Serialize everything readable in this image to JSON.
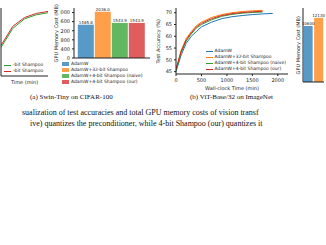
{
  "chart_data": [
    {
      "type": "line",
      "xlabel": "Time (min)",
      "tick_labels": false,
      "legend": "lower left",
      "x": [
        0,
        100,
        200,
        300,
        400
      ],
      "xlim": [
        0,
        400
      ],
      "ylim": [
        0,
        100
      ],
      "series": [
        {
          "name": "-bit Shampoo",
          "color": "#2ca02c",
          "values": [
            42,
            70,
            84,
            90,
            93
          ]
        },
        {
          "name": "-bit Shampoo",
          "color": "#d62728",
          "values": [
            45,
            73,
            86,
            92,
            95
          ]
        }
      ]
    },
    {
      "type": "bar",
      "ylabel": "GPU Memory Cost (MB)",
      "tick_labels": "y",
      "data_labels": true,
      "legend": "bottom",
      "ylim": [
        0,
        2200
      ],
      "yticks": [
        0,
        400,
        800,
        1200,
        1600,
        2000
      ],
      "series": [
        {
          "name": "AdamW",
          "color": "#1f77b4",
          "values": [
            1465.8
          ],
          "value_labels": [
            "1465.8"
          ]
        },
        {
          "name": "AdamW+32-bit Shampoo",
          "color": "#ff7f0e",
          "values": [
            2036.0
          ],
          "value_labels": [
            "2036.0"
          ]
        },
        {
          "name": "AdamW+4-bit Shampoo (naive)",
          "color": "#2ca02c",
          "values": [
            1543.9
          ],
          "value_labels": [
            "1543.9"
          ]
        },
        {
          "name": "AdamW+4-bit Shampoo (our)",
          "color": "#d62728",
          "values": [
            1543.9
          ],
          "value_labels": [
            "1543.9"
          ]
        }
      ]
    },
    {
      "type": "line",
      "xlabel": "Wall-clock Time (min)",
      "ylabel": "Test Accuracy (%)",
      "legend": "lower right",
      "x": [
        0,
        100,
        200,
        300,
        400,
        500,
        700,
        900,
        1100,
        1300,
        1500,
        1700,
        1900
      ],
      "xlim": [
        0,
        2200
      ],
      "xticks": [
        0,
        500,
        1000,
        1500,
        2000
      ],
      "ylim": [
        44,
        72
      ],
      "yticks": [
        45,
        50,
        55,
        60,
        65,
        70
      ],
      "series": [
        {
          "name": "AdamW",
          "color": "#1f77b4",
          "values": [
            45,
            52,
            57,
            60,
            62,
            64,
            66,
            67.5,
            68.3,
            68.8,
            69.2,
            69.5,
            69.7
          ]
        },
        {
          "name": "AdamW+32-bit Shampoo",
          "color": "#ff7f0e",
          "values": [
            46,
            54,
            59,
            62,
            64.5,
            66,
            68,
            69.2,
            70,
            70.5,
            70.8,
            71,
            null
          ]
        },
        {
          "name": "AdamW+4-bit Shampoo (naive)",
          "color": "#2ca02c",
          "values": [
            45.5,
            53,
            58,
            61,
            63.5,
            65,
            67,
            68.5,
            69.3,
            69.8,
            70.1,
            70.3,
            null
          ]
        },
        {
          "name": "AdamW+4-bit Shampoo (our)",
          "color": "#d62728",
          "values": [
            46,
            53.5,
            58.5,
            61.5,
            64,
            65.5,
            67.5,
            68.8,
            69.6,
            70.1,
            70.4,
            70.6,
            null
          ]
        }
      ]
    },
    {
      "type": "bar",
      "ylabel": "GPU Memory Cost (MB)",
      "tick_labels": false,
      "data_labels": true,
      "ylim": [
        0,
        14000
      ],
      "categories": [
        null,
        null
      ],
      "values": [
        10600,
        12130
      ],
      "colors": [
        "#1f77b4",
        "#ff7f0e"
      ]
    }
  ],
  "captions": [
    "(a) Swin-Tiny on CIFAR-100",
    "(b) ViT-Base/32 on ImageNet"
  ],
  "body_text": [
    "sualization of test accuracies and total GPU memory costs of vision transf",
    "ive) quantizes the preconditioner, while 4-bit Shampoo (our) quantizes it"
  ]
}
